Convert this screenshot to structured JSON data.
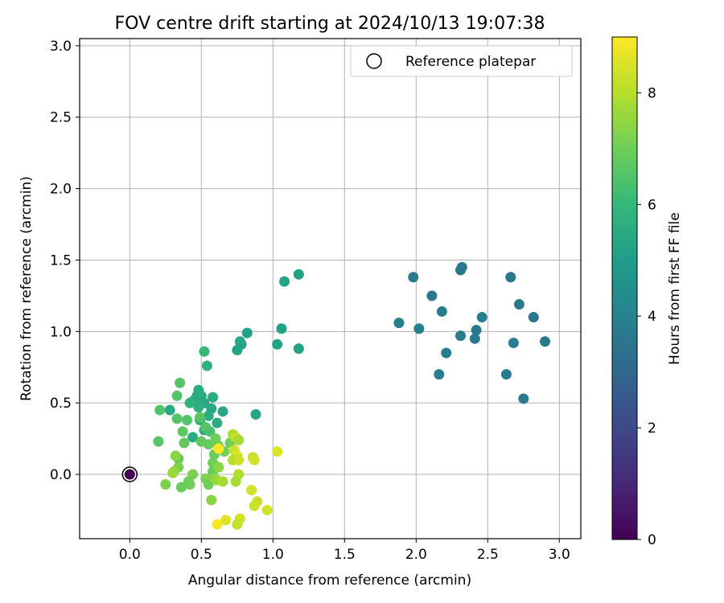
{
  "chart_data": {
    "type": "scatter",
    "title": "FOV centre drift starting at 2024/10/13 19:07:38",
    "xlabel": "Angular distance from reference (arcmin)",
    "ylabel": "Rotation from reference (arcmin)",
    "xlim": [
      -0.35,
      3.15
    ],
    "ylim": [
      -0.45,
      3.05
    ],
    "xticks": [
      0.0,
      0.5,
      1.0,
      1.5,
      2.0,
      2.5,
      3.0
    ],
    "xtick_labels": [
      "0.0",
      "0.5",
      "1.0",
      "1.5",
      "2.0",
      "2.5",
      "3.0"
    ],
    "yticks": [
      0.0,
      0.5,
      1.0,
      1.5,
      2.0,
      2.5,
      3.0
    ],
    "ytick_labels": [
      "0.0",
      "0.5",
      "1.0",
      "1.5",
      "2.0",
      "2.5",
      "3.0"
    ],
    "grid": true,
    "legend": {
      "position": "top-right",
      "entries": [
        "Reference platepar"
      ]
    },
    "colorbar": {
      "label": "Hours from first FF file",
      "range": [
        0,
        9
      ],
      "ticks": [
        0,
        2,
        4,
        6,
        8
      ],
      "tick_labels": [
        "0",
        "2",
        "4",
        "6",
        "8"
      ],
      "colormap": "viridis"
    },
    "reference_point": {
      "x": 0.0,
      "y": 0.0
    },
    "points": [
      {
        "x": 0.0,
        "y": 0.0,
        "c": 0.0
      },
      {
        "x": 2.32,
        "y": 1.45,
        "c": 3.6
      },
      {
        "x": 2.31,
        "y": 1.43,
        "c": 3.6
      },
      {
        "x": 2.66,
        "y": 1.38,
        "c": 3.6
      },
      {
        "x": 1.98,
        "y": 1.38,
        "c": 3.7
      },
      {
        "x": 2.11,
        "y": 1.25,
        "c": 3.7
      },
      {
        "x": 2.18,
        "y": 1.14,
        "c": 3.7
      },
      {
        "x": 2.72,
        "y": 1.19,
        "c": 3.6
      },
      {
        "x": 2.46,
        "y": 1.1,
        "c": 3.8
      },
      {
        "x": 2.82,
        "y": 1.1,
        "c": 3.6
      },
      {
        "x": 1.88,
        "y": 1.06,
        "c": 3.8
      },
      {
        "x": 2.02,
        "y": 1.02,
        "c": 3.9
      },
      {
        "x": 2.42,
        "y": 1.01,
        "c": 3.7
      },
      {
        "x": 2.31,
        "y": 0.97,
        "c": 3.8
      },
      {
        "x": 2.41,
        "y": 0.95,
        "c": 3.7
      },
      {
        "x": 2.9,
        "y": 0.93,
        "c": 3.7
      },
      {
        "x": 2.68,
        "y": 0.92,
        "c": 3.8
      },
      {
        "x": 2.21,
        "y": 0.85,
        "c": 3.8
      },
      {
        "x": 2.16,
        "y": 0.7,
        "c": 3.8
      },
      {
        "x": 2.63,
        "y": 0.7,
        "c": 3.7
      },
      {
        "x": 2.75,
        "y": 0.53,
        "c": 3.7
      },
      {
        "x": 1.18,
        "y": 1.4,
        "c": 5.2
      },
      {
        "x": 1.08,
        "y": 1.35,
        "c": 5.2
      },
      {
        "x": 1.06,
        "y": 1.02,
        "c": 5.2
      },
      {
        "x": 0.82,
        "y": 0.99,
        "c": 5.2
      },
      {
        "x": 0.77,
        "y": 0.93,
        "c": 5.3
      },
      {
        "x": 0.78,
        "y": 0.91,
        "c": 5.3
      },
      {
        "x": 1.03,
        "y": 0.91,
        "c": 5.2
      },
      {
        "x": 1.18,
        "y": 0.88,
        "c": 5.2
      },
      {
        "x": 0.75,
        "y": 0.87,
        "c": 5.2
      },
      {
        "x": 0.88,
        "y": 0.42,
        "c": 5.3
      },
      {
        "x": 0.52,
        "y": 0.86,
        "c": 6.0
      },
      {
        "x": 0.54,
        "y": 0.76,
        "c": 5.8
      },
      {
        "x": 0.48,
        "y": 0.59,
        "c": 5.6
      },
      {
        "x": 0.47,
        "y": 0.55,
        "c": 5.4
      },
      {
        "x": 0.45,
        "y": 0.52,
        "c": 5.5
      },
      {
        "x": 0.5,
        "y": 0.55,
        "c": 5.5
      },
      {
        "x": 0.52,
        "y": 0.5,
        "c": 5.4
      },
      {
        "x": 0.58,
        "y": 0.54,
        "c": 5.6
      },
      {
        "x": 0.57,
        "y": 0.46,
        "c": 5.4
      },
      {
        "x": 0.65,
        "y": 0.44,
        "c": 5.4
      },
      {
        "x": 0.61,
        "y": 0.36,
        "c": 5.5
      },
      {
        "x": 0.55,
        "y": 0.41,
        "c": 5.6
      },
      {
        "x": 0.48,
        "y": 0.47,
        "c": 5.7
      },
      {
        "x": 0.42,
        "y": 0.5,
        "c": 5.8
      },
      {
        "x": 0.28,
        "y": 0.45,
        "c": 5.4
      },
      {
        "x": 0.44,
        "y": 0.26,
        "c": 5.5
      },
      {
        "x": 0.52,
        "y": 0.31,
        "c": 5.6
      },
      {
        "x": 0.49,
        "y": 0.38,
        "c": 5.7
      },
      {
        "x": 0.35,
        "y": 0.64,
        "c": 6.6
      },
      {
        "x": 0.33,
        "y": 0.55,
        "c": 6.5
      },
      {
        "x": 0.21,
        "y": 0.45,
        "c": 6.5
      },
      {
        "x": 0.33,
        "y": 0.39,
        "c": 6.6
      },
      {
        "x": 0.37,
        "y": 0.3,
        "c": 6.7
      },
      {
        "x": 0.4,
        "y": 0.38,
        "c": 6.5
      },
      {
        "x": 0.49,
        "y": 0.4,
        "c": 6.6
      },
      {
        "x": 0.53,
        "y": 0.33,
        "c": 6.6
      },
      {
        "x": 0.56,
        "y": 0.3,
        "c": 6.4
      },
      {
        "x": 0.2,
        "y": 0.23,
        "c": 6.6
      },
      {
        "x": 0.38,
        "y": 0.22,
        "c": 6.8
      },
      {
        "x": 0.5,
        "y": 0.23,
        "c": 6.8
      },
      {
        "x": 0.55,
        "y": 0.21,
        "c": 6.9
      },
      {
        "x": 0.6,
        "y": 0.25,
        "c": 7.0
      },
      {
        "x": 0.62,
        "y": 0.2,
        "c": 7.0
      },
      {
        "x": 0.66,
        "y": 0.16,
        "c": 7.1
      },
      {
        "x": 0.7,
        "y": 0.22,
        "c": 7.0
      },
      {
        "x": 0.59,
        "y": 0.14,
        "c": 6.9
      },
      {
        "x": 0.58,
        "y": 0.08,
        "c": 7.0
      },
      {
        "x": 0.6,
        "y": 0.05,
        "c": 7.0
      },
      {
        "x": 0.58,
        "y": 0.02,
        "c": 6.9
      },
      {
        "x": 0.34,
        "y": 0.11,
        "c": 6.8
      },
      {
        "x": 0.32,
        "y": 0.13,
        "c": 7.4
      },
      {
        "x": 0.34,
        "y": 0.05,
        "c": 7.2
      },
      {
        "x": 0.31,
        "y": 0.02,
        "c": 7.4
      },
      {
        "x": 0.3,
        "y": 0.01,
        "c": 7.6
      },
      {
        "x": 0.44,
        "y": 0.0,
        "c": 7.2
      },
      {
        "x": 0.41,
        "y": -0.05,
        "c": 7.0
      },
      {
        "x": 0.42,
        "y": -0.07,
        "c": 7.0
      },
      {
        "x": 0.36,
        "y": -0.09,
        "c": 6.9
      },
      {
        "x": 0.25,
        "y": -0.07,
        "c": 7.2
      },
      {
        "x": 0.53,
        "y": -0.03,
        "c": 7.2
      },
      {
        "x": 0.55,
        "y": -0.07,
        "c": 7.0
      },
      {
        "x": 0.59,
        "y": -0.03,
        "c": 7.4
      },
      {
        "x": 0.57,
        "y": -0.18,
        "c": 7.4
      },
      {
        "x": 0.61,
        "y": -0.04,
        "c": 7.6
      },
      {
        "x": 0.62,
        "y": 0.05,
        "c": 7.4
      },
      {
        "x": 0.65,
        "y": -0.05,
        "c": 7.8
      },
      {
        "x": 0.72,
        "y": 0.28,
        "c": 7.9
      },
      {
        "x": 0.74,
        "y": 0.26,
        "c": 8.2
      },
      {
        "x": 0.76,
        "y": 0.24,
        "c": 7.8
      },
      {
        "x": 0.73,
        "y": 0.17,
        "c": 8.3
      },
      {
        "x": 0.75,
        "y": 0.13,
        "c": 8.5
      },
      {
        "x": 0.72,
        "y": 0.1,
        "c": 8.0
      },
      {
        "x": 0.76,
        "y": 0.1,
        "c": 8.3
      },
      {
        "x": 0.62,
        "y": 0.18,
        "c": 9.0
      },
      {
        "x": 0.86,
        "y": 0.12,
        "c": 8.2
      },
      {
        "x": 0.87,
        "y": 0.1,
        "c": 8.4
      },
      {
        "x": 1.03,
        "y": 0.16,
        "c": 8.5
      },
      {
        "x": 0.76,
        "y": 0.0,
        "c": 7.9
      },
      {
        "x": 0.74,
        "y": -0.05,
        "c": 7.8
      },
      {
        "x": 0.85,
        "y": -0.11,
        "c": 8.4
      },
      {
        "x": 0.89,
        "y": -0.19,
        "c": 8.3
      },
      {
        "x": 0.87,
        "y": -0.22,
        "c": 8.3
      },
      {
        "x": 0.96,
        "y": -0.25,
        "c": 8.4
      },
      {
        "x": 0.77,
        "y": -0.31,
        "c": 8.4
      },
      {
        "x": 0.75,
        "y": -0.35,
        "c": 8.2
      },
      {
        "x": 0.67,
        "y": -0.32,
        "c": 8.6
      },
      {
        "x": 0.61,
        "y": -0.35,
        "c": 8.9
      }
    ]
  }
}
